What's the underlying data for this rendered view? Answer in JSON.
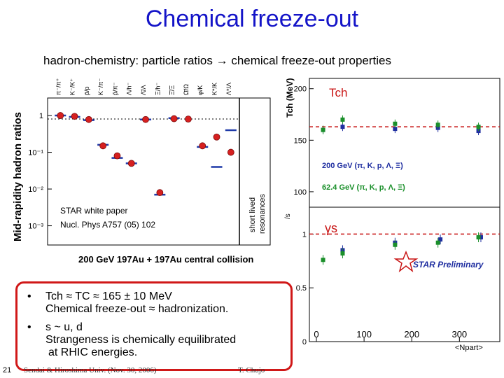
{
  "slide": {
    "title": "Chemical freeze-out",
    "subtitle": "hadron-chemistry: particle ratios → chemical freeze-out properties",
    "slide_number": "21",
    "footer_left": "Sendai & Hiroshima Univ. (Nov. 30, 2006)",
    "footer_right": "T. Chujo"
  },
  "bullets": [
    {
      "marker": "•",
      "lines": [
        "Tch ≈ TC ≈ 165 ± 10 MeV",
        "Chemical freeze-out ≈ hadronization."
      ]
    },
    {
      "marker": "•",
      "lines": [
        "s ~ u, d",
        "Strangeness is chemically equilibrated",
        "at RHIC energies."
      ]
    }
  ],
  "chart_data": [
    {
      "type": "scatter",
      "title": "",
      "xlabel": "200 GeV 197Au + 197Au central collision",
      "ylabel": "Mid-rapidity hadron ratios",
      "yscale": "log",
      "ylim": [
        0.0003,
        3
      ],
      "ytick_labels": [
        "1",
        "10⁻¹",
        "10⁻²",
        "10⁻³"
      ],
      "categories": [
        "π⁻/π⁺",
        "K⁻/K⁺",
        "p̄/p",
        "K⁻/π⁻",
        "p̄/π⁻",
        "Λ/h⁻",
        "Λ̄/Λ",
        "Ξ/h⁻",
        "Ξ̄/Ξ",
        "Ω̄/Ω",
        "φ/K",
        "K*/K",
        "Λ*/Λ"
      ],
      "series": [
        {
          "values": [
            1.0,
            0.95,
            0.78,
            0.15,
            0.08,
            0.05,
            0.78,
            0.008,
            0.82,
            0.8,
            0.15,
            0.26,
            0.1
          ]
        }
      ],
      "model_lines": [
        1.0,
        0.92,
        0.75,
        0.16,
        0.07,
        0.05,
        0.78,
        0.007,
        0.85,
        null,
        0.14,
        0.04,
        0.4
      ],
      "annotations": [
        "STAR white paper",
        "Nucl. Phys A757 (05) 102",
        "short lived",
        "resonances"
      ]
    },
    {
      "type": "scatter",
      "title": "",
      "ylabel": "Tch (MeV)",
      "xlabel": "<Npart>",
      "ylim": [
        85,
        210
      ],
      "ytick_labels": [
        "100",
        "150",
        "200"
      ],
      "reference_line": 163,
      "legend": [
        "200 GeV (π, K, p, Λ, Ξ)",
        "62.4 GeV (π, K, p, Λ, Ξ)"
      ],
      "corner_label": "Tch",
      "series": [
        {
          "name": "200 GeV (π, K, p, Λ, Ξ)",
          "color": "#1f2ea0",
          "x": [
            14,
            55,
            165,
            255,
            340
          ],
          "y": [
            160,
            163,
            161,
            162,
            159
          ]
        },
        {
          "name": "62.4 GeV (π, K, p, Λ, Ξ)",
          "color": "#1a8f2a",
          "x": [
            14,
            55,
            165,
            255,
            340
          ],
          "y": [
            160,
            170,
            166,
            165,
            163
          ]
        }
      ]
    },
    {
      "type": "scatter",
      "title": "",
      "ylabel": "γs",
      "xlabel": "<Npart>",
      "xlim": [
        0,
        370
      ],
      "ylim": [
        0,
        1.25
      ],
      "ytick_labels": [
        "0",
        "0.5",
        "1"
      ],
      "xtick_labels": [
        "0",
        "100",
        "200",
        "300"
      ],
      "reference_line": 1.0,
      "corner_label": "γs",
      "annotation": "STAR Preliminary",
      "series": [
        {
          "name": "200 GeV",
          "color": "#1f2ea0",
          "x": [
            55,
            165,
            260,
            345
          ],
          "y": [
            0.85,
            0.92,
            0.95,
            0.97
          ]
        },
        {
          "name": "62.4 GeV",
          "color": "#1a8f2a",
          "x": [
            14,
            55,
            165,
            255,
            340
          ],
          "y": [
            0.76,
            0.82,
            0.9,
            0.92,
            0.97
          ]
        }
      ]
    }
  ]
}
